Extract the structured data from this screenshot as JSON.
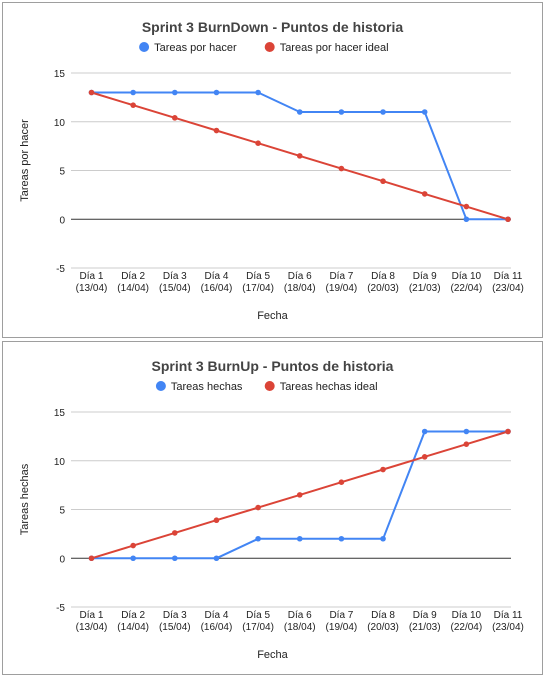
{
  "chart_data": [
    {
      "type": "line",
      "title": "Sprint 3 BurnDown - Puntos de historia",
      "xlabel": "Fecha",
      "ylabel": "Tareas por hacer",
      "ylim": [
        -5,
        15
      ],
      "yticks": [
        "15",
        "10",
        "5",
        "0",
        "-5"
      ],
      "grid": true,
      "legend_position": "top",
      "categories": [
        {
          "line1": "Día 1",
          "line2": "(13/04)"
        },
        {
          "line1": "Día 2",
          "line2": "(14/04)"
        },
        {
          "line1": "Día 3",
          "line2": "(15/04)"
        },
        {
          "line1": "Día 4",
          "line2": "(16/04)"
        },
        {
          "line1": "Día 5",
          "line2": "(17/04)"
        },
        {
          "line1": "Día 6",
          "line2": "(18/04)"
        },
        {
          "line1": "Día 7",
          "line2": "(19/04)"
        },
        {
          "line1": "Día 8",
          "line2": "(20/03)"
        },
        {
          "line1": "Día 9",
          "line2": "(21/03)"
        },
        {
          "line1": "Día 10",
          "line2": "(22/04)"
        },
        {
          "line1": "Día 11",
          "line2": "(23/04)"
        }
      ],
      "series": [
        {
          "name": "Tareas por hacer",
          "color": "#4285f4",
          "values": [
            13,
            13,
            13,
            13,
            13,
            11,
            11,
            11,
            11,
            0,
            0
          ]
        },
        {
          "name": "Tareas por hacer ideal",
          "color": "#db4437",
          "values": [
            13,
            11.7,
            10.4,
            9.1,
            7.8,
            6.5,
            5.2,
            3.9,
            2.6,
            1.3,
            0
          ]
        }
      ]
    },
    {
      "type": "line",
      "title": "Sprint 3 BurnUp - Puntos de historia",
      "xlabel": "Fecha",
      "ylabel": "Tareas hechas",
      "ylim": [
        -5,
        15
      ],
      "yticks": [
        "15",
        "10",
        "5",
        "0",
        "-5"
      ],
      "grid": true,
      "legend_position": "top",
      "categories": [
        {
          "line1": "Día 1",
          "line2": "(13/04)"
        },
        {
          "line1": "Día 2",
          "line2": "(14/04)"
        },
        {
          "line1": "Día 3",
          "line2": "(15/04)"
        },
        {
          "line1": "Día 4",
          "line2": "(16/04)"
        },
        {
          "line1": "Día 5",
          "line2": "(17/04)"
        },
        {
          "line1": "Día 6",
          "line2": "(18/04)"
        },
        {
          "line1": "Día 7",
          "line2": "(19/04)"
        },
        {
          "line1": "Día 8",
          "line2": "(20/03)"
        },
        {
          "line1": "Día 9",
          "line2": "(21/03)"
        },
        {
          "line1": "Día 10",
          "line2": "(22/04)"
        },
        {
          "line1": "Día 11",
          "line2": "(23/04)"
        }
      ],
      "series": [
        {
          "name": "Tareas hechas",
          "color": "#4285f4",
          "values": [
            0,
            0,
            0,
            0,
            2,
            2,
            2,
            2,
            13,
            13,
            13
          ]
        },
        {
          "name": "Tareas hechas ideal",
          "color": "#db4437",
          "values": [
            0,
            1.3,
            2.6,
            3.9,
            5.2,
            6.5,
            7.8,
            9.1,
            10.4,
            11.7,
            13
          ]
        }
      ]
    }
  ]
}
